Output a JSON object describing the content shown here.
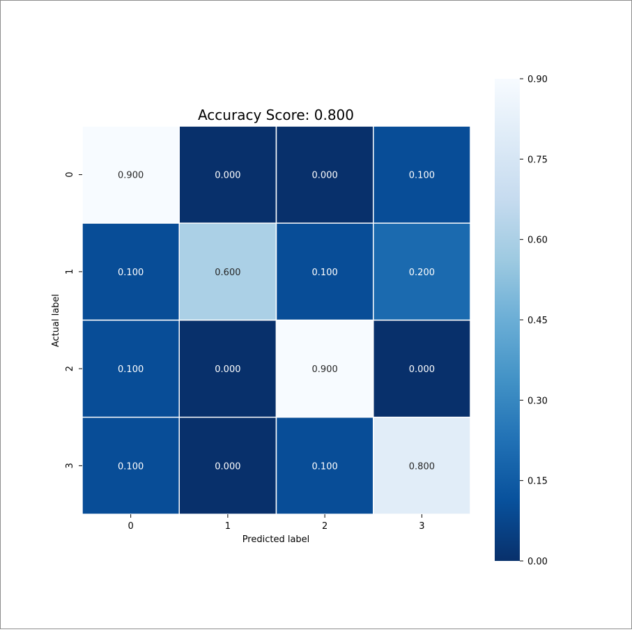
{
  "chart_data": {
    "type": "heatmap",
    "title": "Accuracy Score: 0.800",
    "xlabel": "Predicted label",
    "ylabel": "Actual label",
    "x_categories": [
      "0",
      "1",
      "2",
      "3"
    ],
    "y_categories": [
      "0",
      "1",
      "2",
      "3"
    ],
    "values": [
      [
        0.9,
        0.0,
        0.0,
        0.1
      ],
      [
        0.1,
        0.6,
        0.1,
        0.2
      ],
      [
        0.1,
        0.0,
        0.9,
        0.0
      ],
      [
        0.1,
        0.0,
        0.1,
        0.8
      ]
    ],
    "cell_labels": [
      [
        "0.900",
        "0.000",
        "0.000",
        "0.100"
      ],
      [
        "0.100",
        "0.600",
        "0.100",
        "0.200"
      ],
      [
        "0.100",
        "0.000",
        "0.900",
        "0.000"
      ],
      [
        "0.100",
        "0.000",
        "0.100",
        "0.800"
      ]
    ],
    "colormap": "Blues_r",
    "vmin": 0.0,
    "vmax": 0.9,
    "colorbar_ticks": [
      "0.00",
      "0.15",
      "0.30",
      "0.45",
      "0.60",
      "0.75",
      "0.90"
    ],
    "colorbar_tick_values": [
      0.0,
      0.15,
      0.3,
      0.45,
      0.6,
      0.75,
      0.9
    ],
    "grid_line_color": "#ffffff",
    "colors": {
      "dark": "#08306b",
      "light": "#f7fbff"
    }
  }
}
